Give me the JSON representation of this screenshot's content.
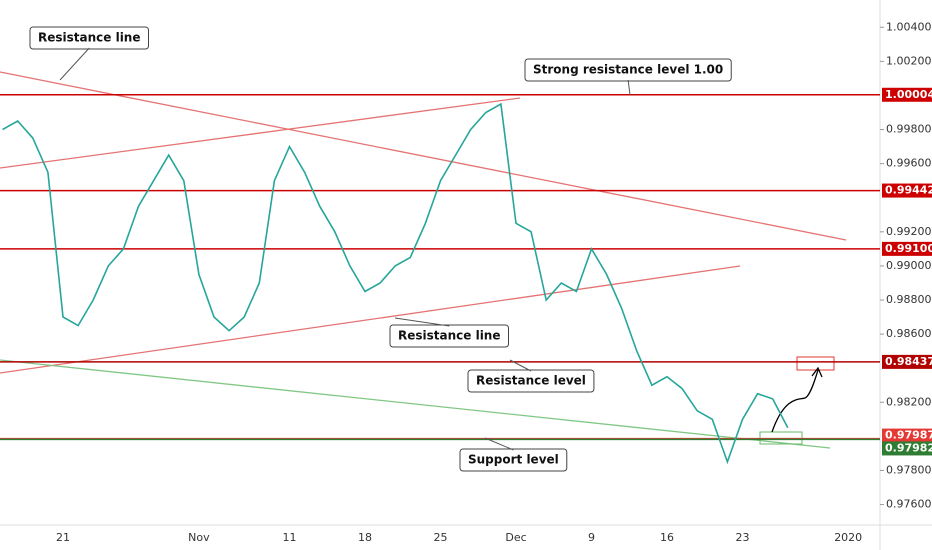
{
  "chart_data": {
    "type": "line",
    "categories": [
      null,
      null,
      null,
      null,
      "21",
      null,
      null,
      null,
      null,
      null,
      null,
      null,
      null,
      "Nov",
      null,
      null,
      null,
      null,
      null,
      "11",
      null,
      null,
      null,
      null,
      "18",
      null,
      null,
      null,
      null,
      "25",
      null,
      null,
      null,
      null,
      "Dec",
      null,
      null,
      null,
      null,
      "9",
      null,
      null,
      null,
      null,
      "16",
      null,
      null,
      null,
      null,
      "23",
      null,
      null,
      null,
      null,
      null,
      null,
      "2020"
    ],
    "series": [
      {
        "color": "#26a69a",
        "values": [
          0.998,
          0.9985,
          0.9975,
          0.9955,
          0.987,
          0.9865,
          0.988,
          0.99,
          0.991,
          0.9935,
          0.995,
          0.9965,
          0.995,
          0.9895,
          0.987,
          0.9862,
          0.987,
          0.989,
          0.995,
          0.997,
          0.9955,
          0.9935,
          0.992,
          0.99,
          0.9885,
          0.989,
          0.99,
          0.9905,
          0.9925,
          0.995,
          0.9965,
          0.998,
          0.999,
          0.9995,
          0.9925,
          0.992,
          0.988,
          0.989,
          0.9885,
          0.991,
          0.9895,
          0.9875,
          0.985,
          0.983,
          0.9835,
          0.9828,
          0.9815,
          0.981,
          0.9785,
          0.981,
          0.9825,
          0.9822,
          0.9805,
          null,
          null,
          null,
          null
        ]
      }
    ],
    "ylim": [
      0.9748,
      1.0056
    ],
    "yticks": [
      {
        "value": 1.004,
        "label": "1.00400"
      },
      {
        "value": 1.002,
        "label": "1.00200"
      },
      {
        "value": 0.998,
        "label": "0.99800"
      },
      {
        "value": 0.996,
        "label": "0.99600"
      },
      {
        "value": 0.992,
        "label": "0.99200"
      },
      {
        "value": 0.99,
        "label": "0.99000"
      },
      {
        "value": 0.988,
        "label": "0.98800"
      },
      {
        "value": 0.986,
        "label": "0.98600"
      },
      {
        "value": 0.982,
        "label": "0.98200"
      },
      {
        "value": 0.978,
        "label": "0.97800"
      },
      {
        "value": 0.976,
        "label": "0.97600"
      }
    ],
    "levels": [
      {
        "value": 1.00004,
        "label": "1.00004",
        "color": "#cc0000"
      },
      {
        "value": 0.99442,
        "label": "0.99442",
        "color": "#cc0000"
      },
      {
        "value": 0.991,
        "label": "0.99100",
        "color": "#cc0000"
      },
      {
        "value": 0.98437,
        "label": "0.98437",
        "color": "#b00000"
      },
      {
        "value": 0.97987,
        "label": "0.97987",
        "color": "#e53935"
      },
      {
        "value": 0.97982,
        "label": "0.97982",
        "color": "#2e7d32"
      }
    ],
    "annotations": [
      "Resistance line",
      "Strong resistance level 1.00",
      "Resistance line",
      "Resistance level",
      "Support level"
    ]
  }
}
